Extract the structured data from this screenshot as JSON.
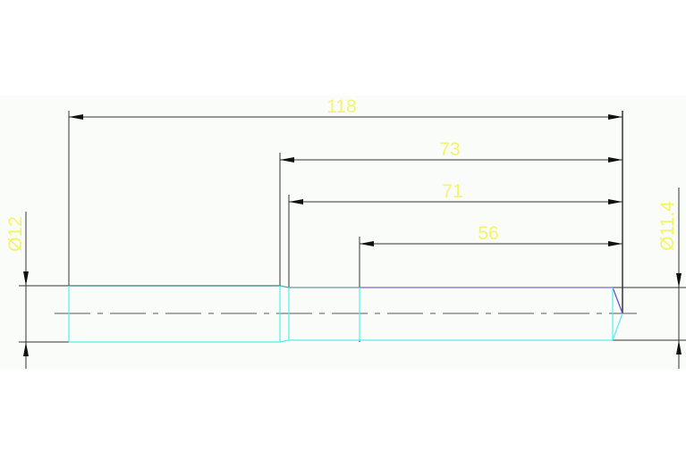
{
  "drawing": {
    "colors": {
      "background": "#fafcfa",
      "dimension_line": "#333333",
      "dimension_text": "#f4f46a",
      "shaft_outline_cyan": "#55eeee",
      "shaft_top_teal": "#2f7f7f",
      "shaft_top_purple": "#7b6ad0",
      "centerline": "#555555"
    },
    "dimensions": {
      "overall_length": "118",
      "length_73": "73",
      "length_71": "71",
      "length_56": "56",
      "diameter_left": "Ø12",
      "diameter_right": "Ø11.4"
    }
  }
}
